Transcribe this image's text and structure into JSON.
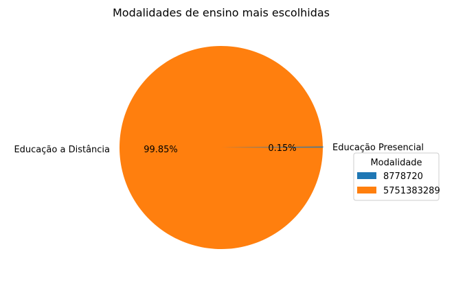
{
  "chart_data": {
    "type": "pie",
    "title": "Modalidades de ensino mais escolhidas",
    "labels": [
      "Educação Presencial",
      "Educação a Distância"
    ],
    "values": [
      8778720,
      5751383289
    ],
    "percent_labels": [
      "0.15%",
      "99.85%"
    ],
    "colors": [
      "#1f77b4",
      "#ff7f0e"
    ],
    "start_angle_deg": 0,
    "legend": {
      "title": "Modalidade",
      "placement": "center-right",
      "entries": [
        "8778720",
        "5751383289"
      ]
    }
  }
}
